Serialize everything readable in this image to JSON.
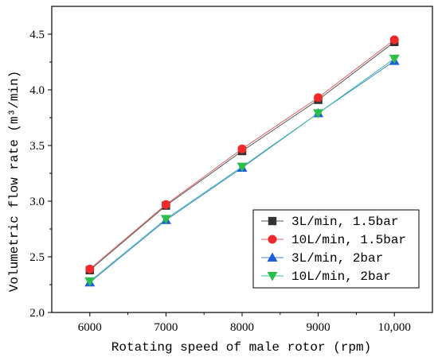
{
  "chart_data": {
    "type": "line",
    "x": [
      6000,
      7000,
      8000,
      9000,
      10000
    ],
    "x_tick_labels": [
      "6000",
      "7000",
      "8000",
      "9000",
      "10,000"
    ],
    "y_tick_labels": [
      "2.0",
      "2.5",
      "3.0",
      "3.5",
      "4.0",
      "4.5"
    ],
    "xlim": [
      5500,
      10500
    ],
    "ylim": [
      2.0,
      4.75
    ],
    "xlabel": "Rotating speed of male rotor (rpm)",
    "ylabel": "Volumetric flow rate (m³/min)",
    "grid": false,
    "legend_position": "bottom-right",
    "series": [
      {
        "name": "3L/min, 1.5bar",
        "marker": "square",
        "color": "#333333",
        "line_color": "#555555",
        "values": [
          2.38,
          2.96,
          3.45,
          3.91,
          4.43
        ]
      },
      {
        "name": "10L/min, 1.5bar",
        "marker": "circle",
        "color": "#ee2a2a",
        "line_color": "#e06060",
        "values": [
          2.39,
          2.97,
          3.47,
          3.93,
          4.45
        ]
      },
      {
        "name": "3L/min, 2bar",
        "marker": "triangle-up",
        "color": "#1e5fd8",
        "line_color": "#4a7fd8",
        "values": [
          2.27,
          2.83,
          3.3,
          3.79,
          4.26
        ]
      },
      {
        "name": "10L/min, 2bar",
        "marker": "triangle-down",
        "color": "#2bbf4a",
        "line_color": "#3cc0a0",
        "values": [
          2.28,
          2.84,
          3.31,
          3.79,
          4.28
        ]
      }
    ]
  }
}
